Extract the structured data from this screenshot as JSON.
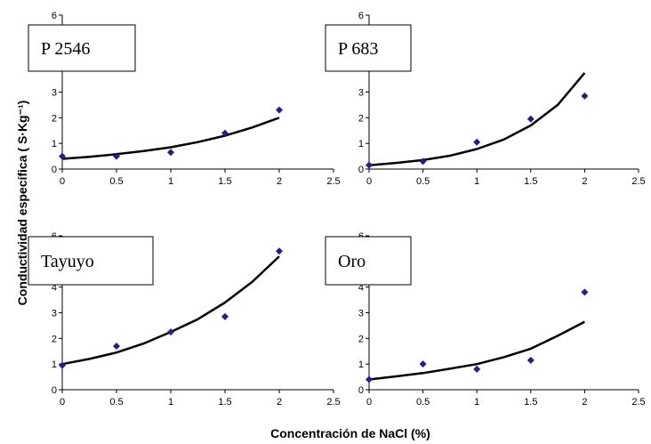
{
  "figure": {
    "ylabel": "Conductividad específica ( S·Kg⁻¹)",
    "xlabel": "Concentración de NaCl (%)",
    "colors": {
      "point": "#1f1f8f",
      "curve": "#000000",
      "axis": "#000000"
    }
  },
  "chart_data": [
    {
      "type": "scatter",
      "label": "P 2546",
      "x": [
        0,
        0.5,
        1,
        1.5,
        2
      ],
      "y": [
        0.5,
        0.5,
        0.65,
        1.4,
        2.3
      ],
      "trend": {
        "x": [
          0,
          0.25,
          0.5,
          0.75,
          1,
          1.25,
          1.5,
          1.75,
          2
        ],
        "y": [
          0.4,
          0.48,
          0.58,
          0.7,
          0.85,
          1.05,
          1.3,
          1.62,
          2.0
        ]
      },
      "xlim": [
        0,
        2.5
      ],
      "ylim": [
        0,
        6
      ],
      "xticks": [
        "0",
        "0.5",
        "1",
        "1.5",
        "2",
        "2.5"
      ],
      "yticks": [
        "0",
        "1",
        "2",
        "3",
        "4",
        "5",
        "6"
      ]
    },
    {
      "type": "scatter",
      "label": "P 683",
      "x": [
        0,
        0.5,
        1,
        1.5,
        2
      ],
      "y": [
        0.15,
        0.3,
        1.05,
        1.95,
        2.85
      ],
      "trend": {
        "x": [
          0,
          0.25,
          0.5,
          0.75,
          1,
          1.25,
          1.5,
          1.75,
          2
        ],
        "y": [
          0.15,
          0.24,
          0.35,
          0.52,
          0.78,
          1.15,
          1.7,
          2.5,
          3.75
        ]
      },
      "xlim": [
        0,
        2.5
      ],
      "ylim": [
        0,
        6
      ],
      "xticks": [
        "0",
        "0.5",
        "1",
        "1.5",
        "2",
        "2.5"
      ],
      "yticks": [
        "0",
        "1",
        "2",
        "3",
        "4",
        "5",
        "6"
      ]
    },
    {
      "type": "scatter",
      "label": "Tayuyo",
      "x": [
        0,
        0.5,
        1,
        1.5,
        2
      ],
      "y": [
        0.95,
        1.7,
        2.25,
        2.85,
        5.4
      ],
      "trend": {
        "x": [
          0,
          0.25,
          0.5,
          0.75,
          1,
          1.25,
          1.5,
          1.75,
          2
        ],
        "y": [
          1.0,
          1.2,
          1.45,
          1.8,
          2.25,
          2.75,
          3.4,
          4.2,
          5.2
        ]
      },
      "xlim": [
        0,
        2.5
      ],
      "ylim": [
        0,
        6
      ],
      "xticks": [
        "0",
        "0.5",
        "1",
        "1.5",
        "2",
        "2.5"
      ],
      "yticks": [
        "0",
        "1",
        "2",
        "3",
        "4",
        "5",
        "6"
      ]
    },
    {
      "type": "scatter",
      "label": "Oro",
      "x": [
        0,
        0.5,
        1,
        1.5,
        2
      ],
      "y": [
        0.4,
        1.0,
        0.8,
        1.15,
        3.8
      ],
      "trend": {
        "x": [
          0,
          0.25,
          0.5,
          0.75,
          1,
          1.25,
          1.5,
          1.75,
          2
        ],
        "y": [
          0.4,
          0.52,
          0.65,
          0.82,
          1.0,
          1.27,
          1.6,
          2.1,
          2.65
        ]
      },
      "xlim": [
        0,
        2.5
      ],
      "ylim": [
        0,
        6
      ],
      "xticks": [
        "0",
        "0.5",
        "1",
        "1.5",
        "2",
        "2.5"
      ],
      "yticks": [
        "0",
        "1",
        "2",
        "3",
        "4",
        "5",
        "6"
      ]
    }
  ]
}
